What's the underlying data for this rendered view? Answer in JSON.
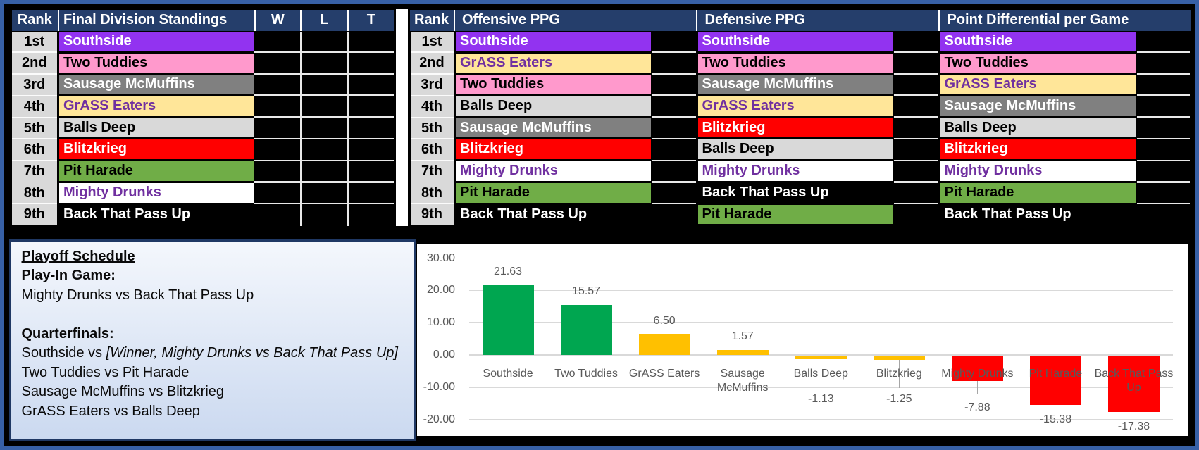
{
  "palette": {
    "outer_border_blue": "#3760A6",
    "background": "#000000",
    "header_navy": "#253E6B",
    "header_text": "#FFFFFF",
    "rank_cell_gray": "#D9D9D9",
    "grid_white": "#E8E8E8",
    "separator_white": "#FFFFFF",
    "playoff_border_navy": "#1F3864",
    "playoff_fill_top": "#F4F7FC",
    "playoff_fill_bottom": "#CBD9F0",
    "chart_background": "#FFFFFF",
    "chart_gridline": "#D9D9D9",
    "chart_text_gray": "#595959",
    "leader_line_gray": "#A6A6A6"
  },
  "teams": {
    "Southside": {
      "bg": "#9233F0",
      "fg": "#FFFFFF"
    },
    "Two Tuddies": {
      "bg": "#FF99CC",
      "fg": "#000000"
    },
    "Sausage McMuffins": {
      "bg": "#808080",
      "fg": "#FFFFFF"
    },
    "GrASS Eaters": {
      "bg": "#FFE699",
      "fg": "#7030A0"
    },
    "Balls Deep": {
      "bg": "#D9D9D9",
      "fg": "#000000"
    },
    "Blitzkrieg": {
      "bg": "#FF0000",
      "fg": "#FFFFFF"
    },
    "Pit Harade": {
      "bg": "#70AD47",
      "fg": "#000000"
    },
    "Mighty Drunks": {
      "bg": "#FFFFFF",
      "fg": "#7030A0"
    },
    "Back That Pass Up": {
      "bg": "#000000",
      "fg": "#FFFFFF"
    }
  },
  "rank_labels": [
    "1st",
    "2nd",
    "3rd",
    "4th",
    "5th",
    "6th",
    "7th",
    "8th",
    "9th"
  ],
  "standings_table": {
    "rank_header": "Rank",
    "title": "Final Division Standings",
    "stat_headers": [
      "W",
      "L",
      "T"
    ],
    "order": [
      "Southside",
      "Two Tuddies",
      "Sausage McMuffins",
      "GrASS Eaters",
      "Balls Deep",
      "Blitzkrieg",
      "Pit Harade",
      "Mighty Drunks",
      "Back That Pass Up"
    ]
  },
  "ranking_section": {
    "rank_header": "Rank",
    "columns": [
      {
        "title": "Offensive PPG",
        "order": [
          "Southside",
          "GrASS Eaters",
          "Two Tuddies",
          "Balls Deep",
          "Sausage McMuffins",
          "Blitzkrieg",
          "Mighty Drunks",
          "Pit Harade",
          "Back That Pass Up"
        ]
      },
      {
        "title": "Defensive PPG",
        "order": [
          "Southside",
          "Two Tuddies",
          "Sausage McMuffins",
          "GrASS Eaters",
          "Blitzkrieg",
          "Balls Deep",
          "Mighty Drunks",
          "Back That Pass Up",
          "Pit Harade"
        ]
      },
      {
        "title": "Point Differential per Game",
        "order": [
          "Southside",
          "Two Tuddies",
          "GrASS Eaters",
          "Sausage McMuffins",
          "Balls Deep",
          "Blitzkrieg",
          "Mighty Drunks",
          "Pit Harade",
          "Back That Pass Up"
        ]
      }
    ]
  },
  "playoff": {
    "title": "Playoff Schedule",
    "play_in_heading": "Play-In Game:",
    "play_in_game": "Mighty Drunks vs Back That Pass Up",
    "quarterfinals_heading": "Quarterfinals:",
    "qf1_prefix": "Southside vs ",
    "qf1_italic": "[Winner, Mighty Drunks vs Back That Pass Up]",
    "qf2": "Two Tuddies vs Pit Harade",
    "qf3": "Sausage McMuffins vs Blitzkrieg",
    "qf4": "GrASS Eaters vs Balls Deep"
  },
  "chart_data": {
    "type": "bar",
    "title": "",
    "xlabel": "",
    "ylabel": "",
    "categories": [
      "Southside",
      "Two Tuddies",
      "GrASS Eaters",
      "Sausage McMuffins",
      "Balls Deep",
      "Blitzkrieg",
      "Mighty Drunks",
      "Pit Harade",
      "Back That Pass Up"
    ],
    "values": [
      21.63,
      15.57,
      6.5,
      1.57,
      -1.13,
      -1.25,
      -7.88,
      -15.38,
      -17.38
    ],
    "data_labels": [
      "21.63",
      "15.57",
      "6.50",
      "1.57",
      "-1.13",
      "-1.25",
      "-7.88",
      "-15.38",
      "-17.38"
    ],
    "bar_colors": [
      "#00A650",
      "#00A650",
      "#FFC000",
      "#FFC000",
      "#FFC000",
      "#FFC000",
      "#FF0000",
      "#FF0000",
      "#FF0000"
    ],
    "yticks": [
      30,
      20,
      10,
      0,
      -10,
      -20
    ],
    "ytick_labels": [
      "30.00",
      "20.00",
      "10.00",
      "0.00",
      "-10.00",
      "-20.00"
    ],
    "ylim": [
      -20,
      30
    ],
    "grid": true,
    "legend": false
  }
}
